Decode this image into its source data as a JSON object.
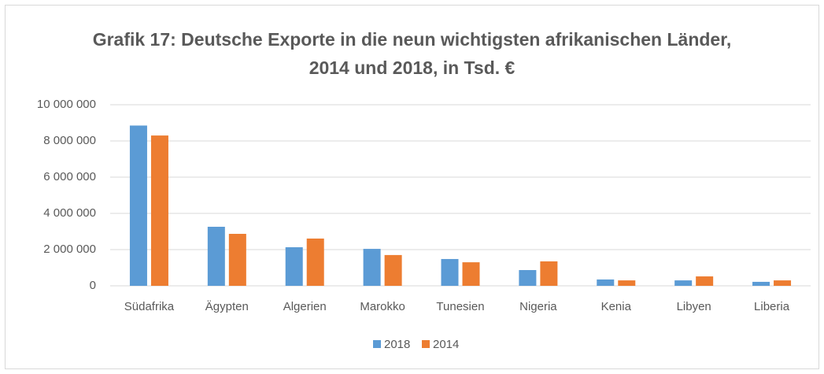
{
  "chart_data": {
    "type": "bar",
    "title": "Grafik 17: Deutsche Exporte in die neun wichtigsten afrikanischen Länder, 2014 und 2018, in Tsd. €",
    "categories": [
      "Südafrika",
      "Ägypten",
      "Algerien",
      "Marokko",
      "Tunesien",
      "Nigeria",
      "Kenia",
      "Libyen",
      "Liberia"
    ],
    "series": [
      {
        "name": "2018",
        "color": "#5b9bd5",
        "values": [
          8850000,
          3260000,
          2130000,
          2040000,
          1480000,
          870000,
          350000,
          300000,
          220000
        ]
      },
      {
        "name": "2014",
        "color": "#ed7d31",
        "values": [
          8300000,
          2870000,
          2610000,
          1700000,
          1300000,
          1350000,
          300000,
          520000,
          300000
        ]
      }
    ],
    "ylim": [
      0,
      10000000
    ],
    "yticks": [
      0,
      {
        "value": 2000000,
        "label": "2 000 000"
      },
      {
        "value": 4000000,
        "label": "4 000 000"
      },
      {
        "value": 6000000,
        "label": "6 000 000"
      },
      {
        "value": 8000000,
        "label": "8 000 000"
      },
      {
        "value": 10000000,
        "label": "10 000 000"
      }
    ],
    "grid": true,
    "legend": "bottom"
  }
}
